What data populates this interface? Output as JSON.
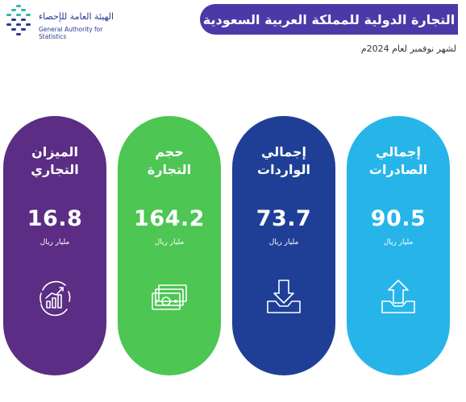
{
  "header": {
    "logo_ar": "الهيئة العامة للإحصاء",
    "logo_en": "General Authority for Statistics",
    "title": "التجارة الدولية للمملكة العربية السعودية",
    "subtitle": "لشهر نوفمبر لعام 2024م"
  },
  "cards": [
    {
      "label_line1": "الميزان",
      "label_line2": "التجاري",
      "value": "16.8",
      "unit": "مليار ريال",
      "color": "#5c2d84",
      "icon": "chart-growth-icon"
    },
    {
      "label_line1": "حجم",
      "label_line2": "التجارة",
      "value": "164.2",
      "unit": "مليار ريال",
      "color": "#4dc653",
      "icon": "money-stack-icon"
    },
    {
      "label_line1": "إجمالي",
      "label_line2": "الواردات",
      "value": "73.7",
      "unit": "مليار ريال",
      "color": "#1f3f97",
      "icon": "import-tray-icon"
    },
    {
      "label_line1": "إجمالي",
      "label_line2": "الصادرات",
      "value": "90.5",
      "unit": "مليار ريال",
      "color": "#27b5e9",
      "icon": "export-tray-icon"
    }
  ]
}
